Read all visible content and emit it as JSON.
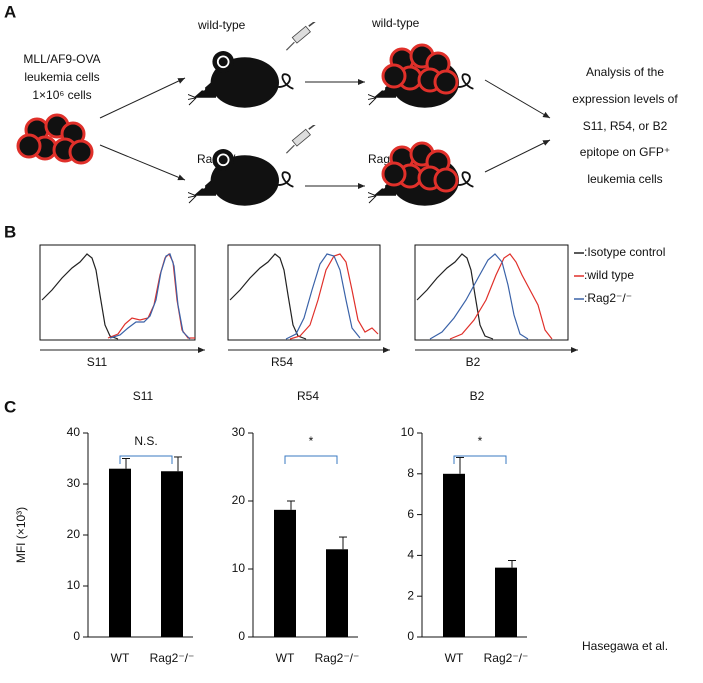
{
  "figure": {
    "panel_labels": [
      "A",
      "B",
      "C"
    ],
    "diagram": {
      "source": [
        "MLL/AF9-OVA",
        "leukemia cells",
        "1×10⁶ cells"
      ],
      "mice": [
        "wild-type",
        "wild-type",
        "Rag2⁻/⁻",
        "Rag2⁻/⁻"
      ],
      "analysis": [
        "Analysis of the",
        "expression levels of",
        "S11, R54, or B2",
        "epitope on  GFP⁺",
        "leukemia cells"
      ]
    },
    "histograms": {
      "markers": [
        "S11",
        "R54",
        "B2"
      ],
      "legend": [
        {
          "name": ":Isotype control",
          "color": "#222222"
        },
        {
          "name": ":wild type",
          "color": "#e0302a"
        },
        {
          "name": ":Rag2⁻/⁻",
          "color": "#3a62a8"
        }
      ]
    },
    "credit": "Hasegawa et al."
  },
  "chart_data": [
    {
      "type": "bar",
      "title": "S11",
      "y_label": "MFI (×10³)",
      "categories": [
        "WT",
        "Rag2⁻/⁻"
      ],
      "values": [
        33,
        32.5
      ],
      "errors": [
        2,
        2.8
      ],
      "color": "#000000",
      "ylim": [
        0,
        40
      ],
      "yticks": [
        0,
        10,
        20,
        30,
        40
      ],
      "annotation": "N.S."
    },
    {
      "type": "bar",
      "title": "R54",
      "categories": [
        "WT",
        "Rag2⁻/⁻"
      ],
      "values": [
        18.7,
        12.9
      ],
      "errors": [
        1.3,
        1.8
      ],
      "color": "#000000",
      "ylim": [
        0,
        30
      ],
      "yticks": [
        0,
        10,
        20,
        30
      ],
      "annotation": "*"
    },
    {
      "type": "bar",
      "title": "B2",
      "categories": [
        "WT",
        "Rag2⁻/⁻"
      ],
      "values": [
        8,
        3.4
      ],
      "errors": [
        0.8,
        0.35
      ],
      "color": "#000000",
      "ylim": [
        0,
        10
      ],
      "yticks": [
        0,
        2,
        4,
        6,
        8,
        10
      ],
      "annotation": "*"
    }
  ]
}
